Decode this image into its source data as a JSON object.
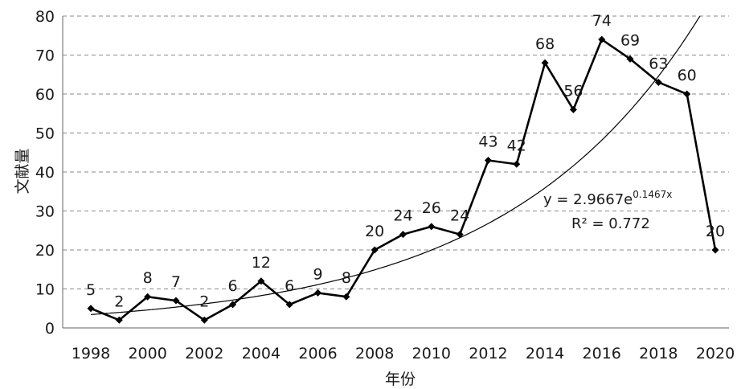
{
  "chart_data": {
    "type": "line",
    "xlabel": "年份",
    "ylabel": "文献量",
    "xlim": [
      1998,
      2020
    ],
    "ylim": [
      0,
      80
    ],
    "y_ticks": [
      0,
      10,
      20,
      30,
      40,
      50,
      60,
      70,
      80
    ],
    "x_ticks": [
      1998,
      2000,
      2002,
      2004,
      2006,
      2008,
      2010,
      2012,
      2014,
      2016,
      2018,
      2020
    ],
    "grid": "horizontal-dashed",
    "series": [
      {
        "x": [
          1998,
          1999,
          2000,
          2001,
          2002,
          2003,
          2004,
          2005,
          2006,
          2007,
          2008,
          2009,
          2010,
          2011,
          2012,
          2013,
          2014,
          2015,
          2016,
          2017,
          2018,
          2019,
          2020
        ],
        "values": [
          5,
          2,
          8,
          7,
          2,
          6,
          12,
          6,
          9,
          8,
          20,
          24,
          26,
          24,
          43,
          42,
          68,
          56,
          74,
          69,
          63,
          60,
          20
        ],
        "color": "#000000",
        "marker": "diamond"
      }
    ],
    "trendline": {
      "type": "exponential",
      "a": 2.9667,
      "b": 0.1467,
      "equation": {
        "prefix": "y = 2.9667e",
        "exponent": "0.1467x"
      },
      "r2": "R² = 0.772"
    }
  }
}
